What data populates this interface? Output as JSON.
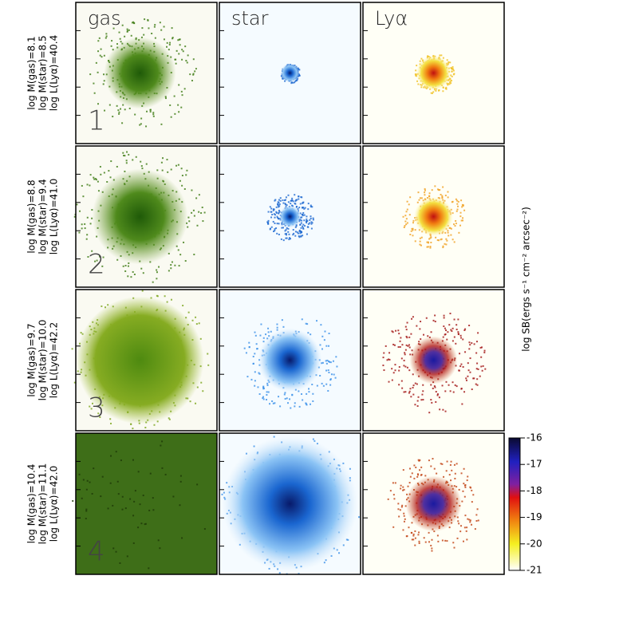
{
  "columns": [
    "gas",
    "star",
    "Lyα"
  ],
  "rows": [
    {
      "number": "1",
      "labels": [
        "log M(gas)=8.1",
        "log M(star)=8.5",
        "log L(Lyα)=40.4"
      ]
    },
    {
      "number": "2",
      "labels": [
        "log M(gas)=8.8",
        "log M(star)=9.4",
        "log L(Lyα)=41.0"
      ]
    },
    {
      "number": "3",
      "labels": [
        "log M(gas)=9.7",
        "log M(star)=10.0",
        "log L(Lyα)=42.2"
      ]
    },
    {
      "number": "4",
      "labels": [
        "log M(gas)=10.4",
        "log M(star)=11.1",
        "log L(Lyα)=42.0"
      ]
    }
  ],
  "colorbar": {
    "label": "log SB(ergs s⁻¹ cm⁻² arcsec⁻²)",
    "lim": [
      -21,
      -16
    ],
    "ticks": [
      -16,
      -17,
      -18,
      -19,
      -20,
      -21
    ]
  }
}
